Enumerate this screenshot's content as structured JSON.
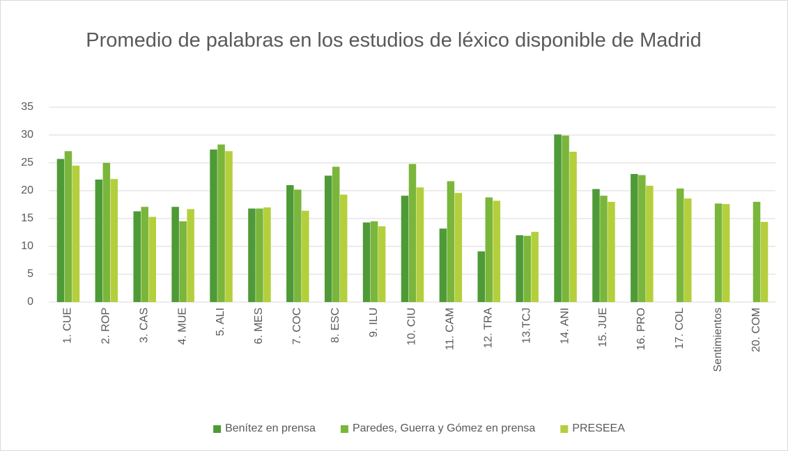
{
  "chart_data": {
    "type": "bar",
    "title": "Promedio de palabras en los estudios de léxico disponible de Madrid",
    "categories": [
      "1. CUE",
      "2. ROP",
      "3. CAS",
      "4. MUE",
      "5. ALI",
      "6. MES",
      "7. COC",
      "8. ESC",
      "9. ILU",
      "10. CIU",
      "11. CAM",
      "12. TRA",
      "13.TCJ",
      "14. ANI",
      "15. JUE",
      "16. PRO",
      "17. COL",
      "Sentimientos",
      "20. COM"
    ],
    "series": [
      {
        "name": "Benítez en prensa",
        "color": "#4e9a37",
        "values": [
          25.7,
          22,
          16.3,
          17.1,
          27.4,
          16.8,
          21,
          22.7,
          14.3,
          19.1,
          13.2,
          9.1,
          12,
          30.1,
          20.3,
          23,
          null,
          null,
          null
        ]
      },
      {
        "name": "Paredes, Guerra y Gómez en prensa",
        "color": "#7ab63b",
        "values": [
          27.1,
          25,
          17.1,
          14.5,
          28.3,
          16.8,
          20.2,
          24.3,
          14.5,
          24.8,
          21.7,
          18.8,
          11.9,
          29.9,
          19.1,
          22.8,
          20.4,
          17.7,
          18
        ]
      },
      {
        "name": "PRESEEA",
        "color": "#b4cf3c",
        "values": [
          24.5,
          22.1,
          15.3,
          16.7,
          27.1,
          17,
          16.4,
          19.3,
          13.6,
          20.6,
          19.6,
          18.2,
          12.6,
          27,
          18,
          20.9,
          18.6,
          17.6,
          14.4
        ]
      }
    ],
    "ylim": [
      0,
      35
    ],
    "yticks": [
      0,
      5,
      10,
      15,
      20,
      25,
      30,
      35
    ],
    "grid": true,
    "legend": "bottom"
  }
}
